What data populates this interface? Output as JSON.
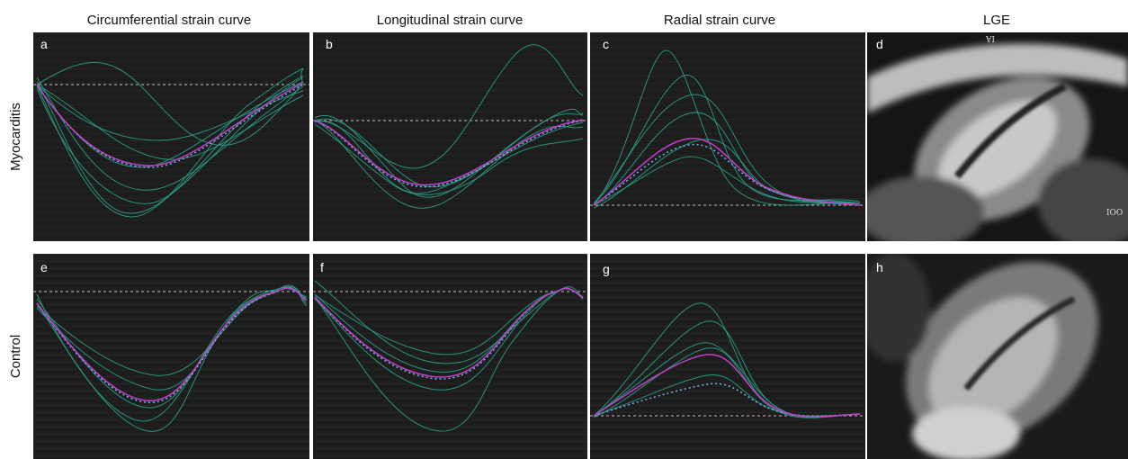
{
  "columns": [
    "Circumferential strain curve",
    "Longitudinal strain curve",
    "Radial strain curve",
    "LGE"
  ],
  "rows": [
    "Myocarditis",
    "Control"
  ],
  "panels": [
    "a",
    "b",
    "c",
    "d",
    "e",
    "f",
    "g",
    "h"
  ],
  "lge_markers": [
    "IA",
    "IOO"
  ]
}
